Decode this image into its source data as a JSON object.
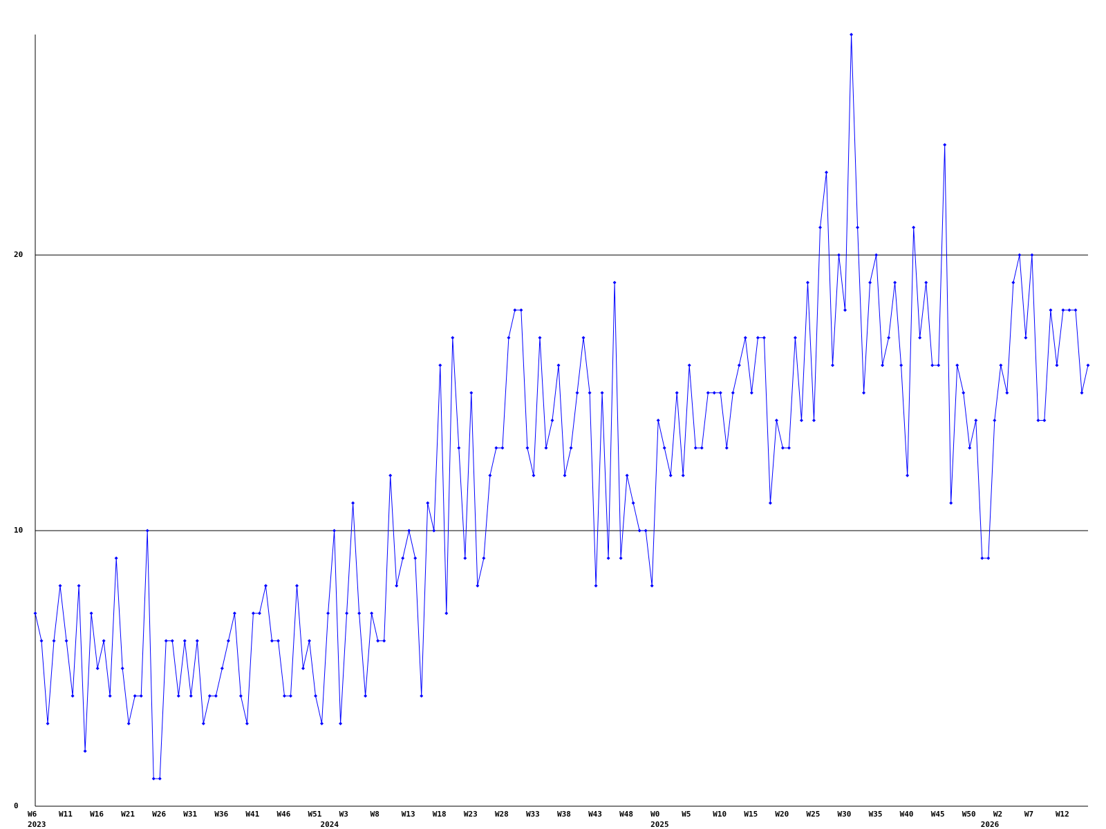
{
  "chart_data": {
    "type": "line",
    "categories": [
      "W6",
      null,
      null,
      null,
      null,
      "W11",
      null,
      null,
      null,
      null,
      "W16",
      null,
      null,
      null,
      null,
      "W21",
      null,
      null,
      null,
      null,
      "W26",
      null,
      null,
      null,
      null,
      "W31",
      null,
      null,
      null,
      null,
      "W36",
      null,
      null,
      null,
      null,
      "W41",
      null,
      null,
      null,
      null,
      "W46",
      null,
      null,
      null,
      null,
      "W51",
      null,
      null,
      null,
      null,
      "W3",
      null,
      null,
      null,
      null,
      "W8",
      null,
      null,
      null,
      null,
      "W13",
      null,
      null,
      null,
      null,
      "W18",
      null,
      null,
      null,
      null,
      "W23",
      null,
      null,
      null,
      null,
      "W28",
      null,
      null,
      null,
      null,
      "W33",
      null,
      null,
      null,
      null,
      "W38",
      null,
      null,
      null,
      null,
      "W43",
      null,
      null,
      null,
      null,
      "W48",
      null,
      null,
      null,
      null,
      "W0",
      null,
      null,
      null,
      null,
      "W5",
      null,
      null,
      null,
      null,
      "W10",
      null,
      null,
      null,
      null,
      "W15",
      null,
      null,
      null,
      null,
      "W20",
      null,
      null,
      null,
      null,
      "W25",
      null,
      null,
      null,
      null,
      "W30",
      null,
      null,
      null,
      null,
      "W35",
      null,
      null,
      null,
      null,
      "W40",
      null,
      null,
      null,
      null,
      "W45",
      null,
      null,
      null,
      null,
      "W50",
      null,
      null,
      null,
      null,
      "W2",
      null,
      null,
      null,
      null,
      "W7",
      null,
      null,
      null,
      null,
      "W12",
      null,
      null,
      null,
      null
    ],
    "x_year_labels": [
      "2023",
      null,
      null,
      null,
      null,
      null,
      null,
      null,
      null,
      null,
      null,
      null,
      null,
      null,
      null,
      null,
      null,
      null,
      null,
      null,
      null,
      null,
      null,
      null,
      null,
      null,
      null,
      null,
      null,
      null,
      null,
      null,
      null,
      null,
      null,
      null,
      null,
      null,
      null,
      null,
      null,
      null,
      null,
      null,
      null,
      null,
      null,
      "2024",
      null,
      null,
      null,
      null,
      null,
      null,
      null,
      null,
      null,
      null,
      null,
      null,
      null,
      null,
      null,
      null,
      null,
      null,
      null,
      null,
      null,
      null,
      null,
      null,
      null,
      null,
      null,
      null,
      null,
      null,
      null,
      null,
      null,
      null,
      null,
      null,
      null,
      null,
      null,
      null,
      null,
      null,
      null,
      null,
      null,
      null,
      null,
      null,
      null,
      null,
      null,
      null,
      "2025",
      null,
      null,
      null,
      null,
      null,
      null,
      null,
      null,
      null,
      null,
      null,
      null,
      null,
      null,
      null,
      null,
      null,
      null,
      null,
      null,
      null,
      null,
      null,
      null,
      null,
      null,
      null,
      null,
      null,
      null,
      null,
      null,
      null,
      null,
      null,
      null,
      null,
      null,
      null,
      null,
      null,
      null,
      null,
      null,
      null,
      null,
      null,
      null,
      null,
      null,
      null,
      null,
      "2026",
      null,
      null,
      null,
      null,
      null,
      null,
      null,
      null,
      null,
      null,
      null,
      null,
      null,
      null,
      null,
      null
    ],
    "values": [
      7,
      6,
      3,
      6,
      8,
      6,
      4,
      8,
      2,
      7,
      5,
      6,
      4,
      9,
      5,
      3,
      4,
      4,
      10,
      1,
      1,
      6,
      6,
      4,
      6,
      4,
      6,
      3,
      4,
      4,
      5,
      6,
      7,
      4,
      3,
      7,
      7,
      8,
      6,
      6,
      4,
      4,
      8,
      5,
      6,
      4,
      3,
      7,
      10,
      3,
      7,
      11,
      7,
      4,
      7,
      6,
      6,
      12,
      8,
      9,
      10,
      9,
      4,
      11,
      10,
      16,
      7,
      17,
      13,
      9,
      15,
      8,
      9,
      12,
      13,
      13,
      17,
      18,
      18,
      13,
      12,
      17,
      13,
      14,
      16,
      12,
      13,
      15,
      17,
      15,
      8,
      15,
      9,
      19,
      9,
      12,
      11,
      10,
      10,
      8,
      14,
      13,
      12,
      15,
      12,
      16,
      13,
      13,
      15,
      15,
      15,
      13,
      15,
      16,
      17,
      15,
      17,
      17,
      11,
      14,
      13,
      13,
      17,
      14,
      19,
      14,
      21,
      23,
      16,
      20,
      18,
      28,
      21,
      15,
      19,
      20,
      16,
      17,
      19,
      16,
      12,
      21,
      17,
      19,
      16,
      16,
      24,
      11,
      16,
      15,
      13,
      14,
      9,
      9,
      14,
      16,
      15,
      19,
      20,
      17,
      20,
      14,
      14,
      18,
      16,
      18,
      18,
      18,
      15,
      16
    ],
    "color": "#0000ff",
    "ylim": [
      0,
      28
    ],
    "yticks": [
      0,
      10,
      20
    ],
    "grid": true
  }
}
